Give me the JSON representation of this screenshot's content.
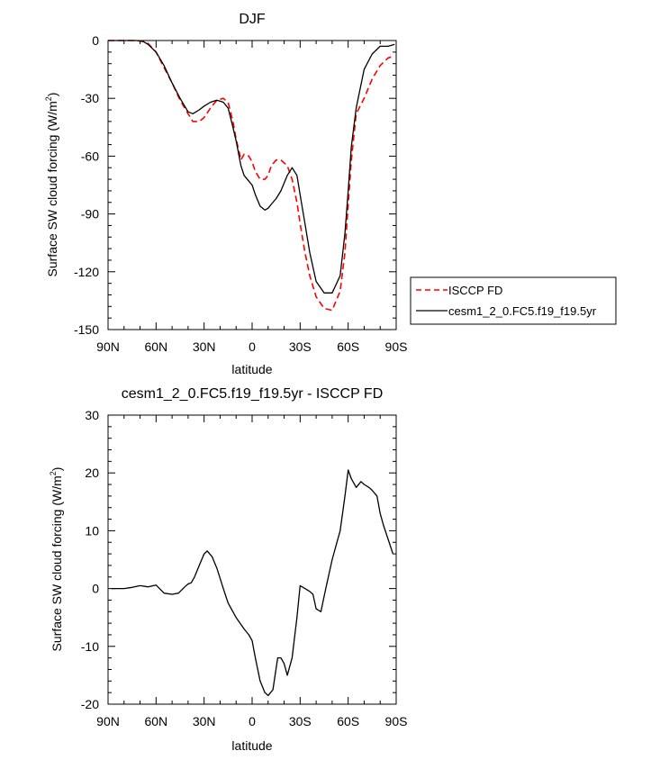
{
  "chart_data": [
    {
      "type": "line",
      "title": "DJF",
      "xlabel": "latitude",
      "ylabel": "Surface SW cloud forcing (W/m",
      "ylabel_sup": "2",
      "ylabel_close": ")",
      "xlim": [
        90,
        -90
      ],
      "ylim": [
        -150,
        0
      ],
      "xticks": [
        90,
        60,
        30,
        0,
        -30,
        -60,
        -90
      ],
      "xtick_labels": [
        "90N",
        "60N",
        "30N",
        "0",
        "30S",
        "60S",
        "90S"
      ],
      "yticks": [
        0,
        -30,
        -60,
        -90,
        -120,
        -150
      ],
      "ytick_labels": [
        "0",
        "-30",
        "-60",
        "-90",
        "-120",
        "-150"
      ],
      "legend_position": "right",
      "series": [
        {
          "name": "ISCCP FD",
          "color": "#ff0000",
          "style": "dashed",
          "x": [
            90,
            85,
            80,
            75,
            72,
            68,
            65,
            60,
            55,
            50,
            45,
            40,
            37,
            33,
            30,
            26,
            22,
            18,
            15,
            12,
            10,
            7,
            5,
            2,
            0,
            -2,
            -5,
            -8,
            -10,
            -12,
            -15,
            -18,
            -22,
            -25,
            -28,
            -30,
            -33,
            -36,
            -40,
            -45,
            -50,
            -55,
            -58,
            -60,
            -62,
            -65,
            -70,
            -75,
            -80,
            -85,
            -89
          ],
          "y": [
            0,
            0,
            0,
            0,
            0,
            -0.5,
            -1.5,
            -6,
            -14,
            -22,
            -31,
            -38,
            -42,
            -42,
            -40,
            -35,
            -31,
            -30,
            -32,
            -42,
            -51,
            -62,
            -59,
            -60,
            -63,
            -68,
            -72,
            -72,
            -70,
            -65,
            -62,
            -62,
            -65,
            -72,
            -84,
            -95,
            -110,
            -122,
            -133,
            -139,
            -140,
            -130,
            -110,
            -85,
            -62,
            -38,
            -30,
            -20,
            -13,
            -9,
            -8
          ]
        },
        {
          "name": "cesm1_2_0.FC5.f19_f19.5yr",
          "color": "#000000",
          "style": "solid",
          "x": [
            90,
            85,
            80,
            75,
            72,
            68,
            65,
            60,
            55,
            50,
            45,
            40,
            37,
            33,
            30,
            26,
            22,
            18,
            15,
            12,
            10,
            7,
            5,
            2,
            0,
            -2,
            -5,
            -8,
            -10,
            -12,
            -15,
            -18,
            -22,
            -25,
            -28,
            -30,
            -33,
            -36,
            -40,
            -45,
            -50,
            -55,
            -58,
            -60,
            -62,
            -65,
            -70,
            -75,
            -80,
            -85,
            -89
          ],
          "y": [
            0,
            0,
            0,
            0,
            0,
            -0.5,
            -2,
            -6,
            -13,
            -22,
            -30,
            -37,
            -38,
            -36,
            -34,
            -32,
            -31,
            -32,
            -35,
            -45,
            -52,
            -65,
            -70,
            -73,
            -75,
            -80,
            -86,
            -88,
            -87,
            -85,
            -82,
            -78,
            -70,
            -66,
            -70,
            -80,
            -95,
            -110,
            -125,
            -131,
            -131,
            -122,
            -100,
            -78,
            -55,
            -35,
            -15,
            -7,
            -3,
            -3,
            -2
          ]
        }
      ]
    },
    {
      "type": "line",
      "title": "cesm1_2_0.FC5.f19_f19.5yr - ISCCP FD",
      "xlabel": "latitude",
      "ylabel": "Surface SW cloud forcing (W/m",
      "ylabel_sup": "2",
      "ylabel_close": ")",
      "xlim": [
        90,
        -90
      ],
      "ylim": [
        -20,
        30
      ],
      "xticks": [
        90,
        60,
        30,
        0,
        -30,
        -60,
        -90
      ],
      "xtick_labels": [
        "90N",
        "60N",
        "30N",
        "0",
        "30S",
        "60S",
        "90S"
      ],
      "yticks": [
        30,
        20,
        10,
        0,
        -10,
        -20
      ],
      "ytick_labels": [
        "30",
        "20",
        "10",
        "0",
        "-10",
        "-20"
      ],
      "series": [
        {
          "color": "#000000",
          "style": "solid",
          "x": [
            88,
            80,
            75,
            70,
            65,
            60,
            55,
            50,
            46,
            42,
            40,
            38,
            36,
            33,
            30,
            28,
            25,
            22,
            18,
            15,
            10,
            5,
            2,
            0,
            -2,
            -5,
            -8,
            -10,
            -13,
            -16,
            -18,
            -20,
            -22,
            -25,
            -28,
            -30,
            -33,
            -36,
            -38,
            -40,
            -43,
            -46,
            -50,
            -53,
            -55,
            -58,
            -60,
            -62,
            -65,
            -68,
            -70,
            -73,
            -75,
            -78,
            -80,
            -82,
            -85,
            -88
          ],
          "y": [
            0,
            0,
            0.2,
            0.5,
            0.3,
            0.6,
            -0.8,
            -1,
            -0.8,
            0.3,
            0.8,
            1,
            2,
            4,
            6,
            6.5,
            5.5,
            3.5,
            0,
            -2.5,
            -5,
            -7,
            -8,
            -9,
            -12,
            -16,
            -18,
            -18.5,
            -17.5,
            -12,
            -12,
            -13,
            -15,
            -12,
            -5,
            0.5,
            0,
            -0.5,
            -1,
            -3.5,
            -4,
            0,
            5,
            8,
            10,
            16,
            20.5,
            19,
            17.5,
            18.5,
            18,
            17.5,
            17,
            16,
            13,
            11,
            8.5,
            6
          ]
        }
      ]
    }
  ]
}
